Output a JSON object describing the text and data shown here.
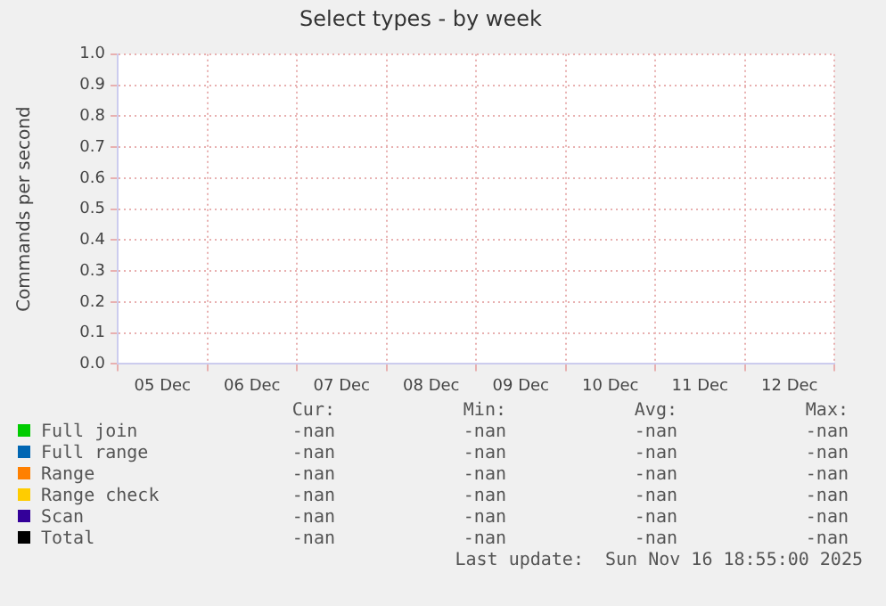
{
  "chart_data": {
    "type": "line",
    "title": "Select types - by week",
    "ylabel": "Commands per second",
    "categories": [
      "05 Dec",
      "06 Dec",
      "07 Dec",
      "08 Dec",
      "09 Dec",
      "10 Dec",
      "11 Dec",
      "12 Dec"
    ],
    "ylim": [
      0,
      1
    ],
    "yticks": [
      {
        "value": 0,
        "label": "0.0"
      },
      0.1,
      0.2,
      0.3,
      0.4,
      0.5,
      0.6,
      0.7,
      0.8,
      0.9,
      {
        "value": 1,
        "label": "1.0"
      }
    ],
    "grid": true,
    "legend": "bottom",
    "series": [
      {
        "name": "Full join",
        "color": "#00cc00",
        "values": [
          null,
          null,
          null,
          null,
          null,
          null,
          null,
          null
        ]
      },
      {
        "name": "Full range",
        "color": "#0066b3",
        "values": [
          null,
          null,
          null,
          null,
          null,
          null,
          null,
          null
        ]
      },
      {
        "name": "Range",
        "color": "#ff8000",
        "values": [
          null,
          null,
          null,
          null,
          null,
          null,
          null,
          null
        ]
      },
      {
        "name": "Range check",
        "color": "#ffcc00",
        "values": [
          null,
          null,
          null,
          null,
          null,
          null,
          null,
          null
        ]
      },
      {
        "name": "Scan",
        "color": "#330099",
        "values": [
          null,
          null,
          null,
          null,
          null,
          null,
          null,
          null
        ]
      },
      {
        "name": "Total",
        "color": "#000000",
        "values": [
          null,
          null,
          null,
          null,
          null,
          null,
          null,
          null
        ]
      }
    ],
    "annotations": [
      "Cur:",
      "Min:",
      "Avg:",
      "Max:",
      "-nan",
      "-nan",
      "-nan",
      "-nan",
      "-nan",
      "-nan",
      "-nan",
      "-nan",
      "-nan",
      "-nan",
      "-nan",
      "-nan",
      "-nan",
      "-nan",
      "-nan",
      "-nan",
      "-nan",
      "-nan",
      "-nan",
      "-nan",
      "-nan",
      "-nan",
      "-nan",
      "-nan",
      "Last update:  Sun Nov 16 18:55:00 2025"
    ]
  }
}
